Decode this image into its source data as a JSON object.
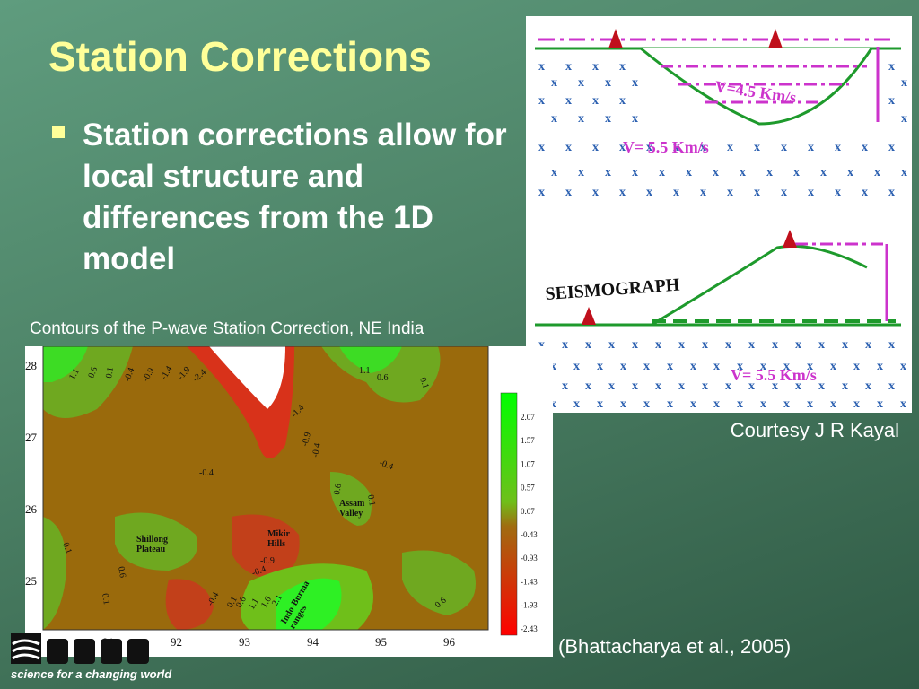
{
  "slide": {
    "title": "Station Corrections",
    "bullets": [
      "Station corrections allow for local structure and differences from the 1D model"
    ]
  },
  "captions": {
    "contour_title": "Contours of the P-wave Station Correction, NE India",
    "courtesy": "Courtesy J R Kayal",
    "citation": "(Bhattacharya et al., 2005)"
  },
  "sketch": {
    "top_low_velocity": "V=4.5 Km/s",
    "top_half_space": "V= 5.5 Km/s",
    "bottom_label": "SEISMOGRAPH",
    "bottom_half_space": "V= 5.5 Km/s",
    "colors": {
      "line": "#1e9a2c",
      "dash": "#cc33cc",
      "marker": "#c0101c",
      "x_marks": "#2a5fb0"
    }
  },
  "map": {
    "y_ticks": [
      "28",
      "27",
      "26",
      "25"
    ],
    "x_ticks": [
      "91",
      "92",
      "93",
      "94",
      "95",
      "96"
    ],
    "regions": [
      "Shillong\nPlateau",
      "Mikir\nHills",
      "Assam\nValley",
      "Indo-Burma\nranges"
    ],
    "contour_labels": [
      "1.1",
      "0.6",
      "0.1",
      "-0.4",
      "-0.9",
      "-1.4",
      "-1.9",
      "-2.4",
      "1.1",
      "0.6",
      "0.1",
      "-1.4",
      "-0.9",
      "-0.4",
      "-0.4",
      "-0.4",
      "0.6",
      "0.1",
      "0.1",
      "0.6",
      "0.1",
      "-0.9",
      "-0.4",
      "-0.4",
      "0.1",
      "0.6",
      "1.1",
      "1.6",
      "2.1",
      "0.6"
    ],
    "colorbar": [
      "2.07",
      "1.57",
      "1.07",
      "0.57",
      "0.07",
      "-0.43",
      "-0.93",
      "-1.43",
      "-1.93",
      "-2.43"
    ],
    "colors": {
      "high": "#00ff00",
      "low": "#ff0000",
      "mid": "#a06c10",
      "background": "#9a6a0c"
    }
  },
  "logo": {
    "tagline": "science for a changing world"
  }
}
